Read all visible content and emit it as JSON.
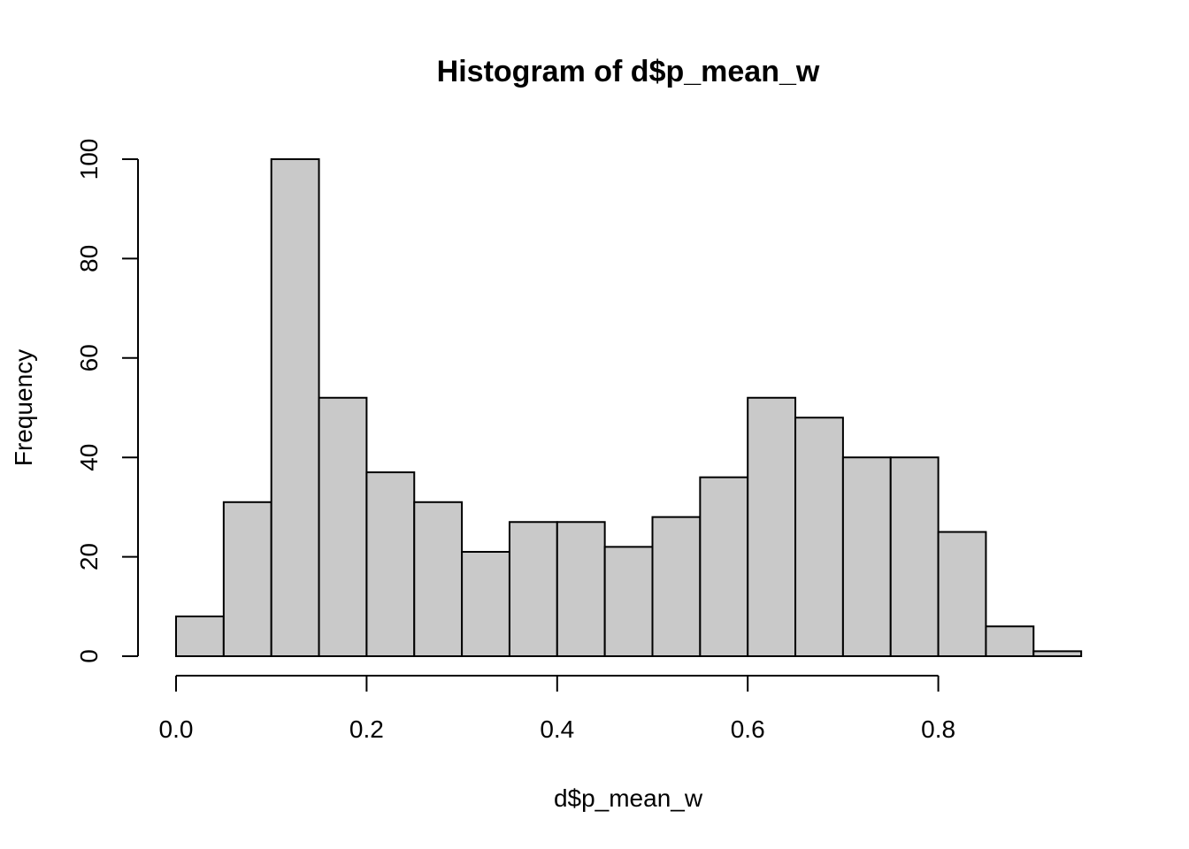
{
  "chart_data": {
    "type": "bar",
    "subtype": "histogram",
    "title": "Histogram of d$p_mean_w",
    "xlabel": "d$p_mean_w",
    "ylabel": "Frequency",
    "bin_edges": [
      0.0,
      0.05,
      0.1,
      0.15,
      0.2,
      0.25,
      0.3,
      0.35,
      0.4,
      0.45,
      0.5,
      0.55,
      0.6,
      0.65,
      0.7,
      0.75,
      0.8,
      0.85,
      0.9,
      0.95
    ],
    "values": [
      8,
      31,
      100,
      52,
      37,
      31,
      21,
      27,
      27,
      22,
      28,
      36,
      52,
      48,
      40,
      40,
      25,
      6,
      1
    ],
    "xlim": [
      0.0,
      0.95
    ],
    "ylim": [
      0,
      100
    ],
    "x_ticks": [
      {
        "value": 0.0,
        "label": "0.0"
      },
      {
        "value": 0.2,
        "label": "0.2"
      },
      {
        "value": 0.4,
        "label": "0.4"
      },
      {
        "value": 0.6,
        "label": "0.6"
      },
      {
        "value": 0.8,
        "label": "0.8"
      }
    ],
    "y_ticks": [
      {
        "value": 0,
        "label": "0"
      },
      {
        "value": 20,
        "label": "20"
      },
      {
        "value": 40,
        "label": "40"
      },
      {
        "value": 60,
        "label": "60"
      },
      {
        "value": 80,
        "label": "80"
      },
      {
        "value": 100,
        "label": "100"
      }
    ],
    "grid": false,
    "legend": "none",
    "colors": {
      "bar_fill": "#c9c9c9",
      "bar_stroke": "#000000",
      "axis": "#000000",
      "background": "#ffffff"
    }
  }
}
